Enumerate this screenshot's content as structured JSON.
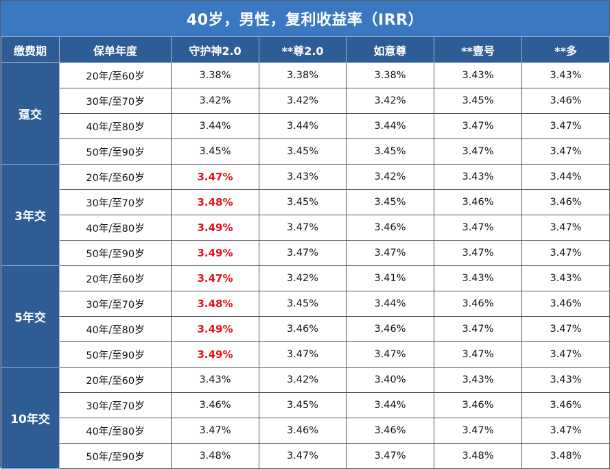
{
  "title": "40岁，男性，复利收益率（IRR）",
  "colors": {
    "title_bg": "#3a78c2",
    "header_bg": "#2e5c94",
    "highlight_text": "#e5101a"
  },
  "headers": [
    "缴费期",
    "保单年度",
    "守护神2.0",
    "**尊2.0",
    "如意尊",
    "**壹号",
    "**多"
  ],
  "groups": [
    {
      "label": "趸交",
      "rows": [
        {
          "period": "20年/至60岁",
          "values": [
            "3.38%",
            "3.38%",
            "3.38%",
            "3.43%",
            "3.43%"
          ],
          "highlight_first": false
        },
        {
          "period": "30年/至70岁",
          "values": [
            "3.42%",
            "3.42%",
            "3.42%",
            "3.45%",
            "3.46%"
          ],
          "highlight_first": false
        },
        {
          "period": "40年/至80岁",
          "values": [
            "3.44%",
            "3.44%",
            "3.44%",
            "3.47%",
            "3.47%"
          ],
          "highlight_first": false
        },
        {
          "period": "50年/至90岁",
          "values": [
            "3.45%",
            "3.45%",
            "3.45%",
            "3.47%",
            "3.47%"
          ],
          "highlight_first": false
        }
      ]
    },
    {
      "label": "3年交",
      "rows": [
        {
          "period": "20年/至60岁",
          "values": [
            "3.47%",
            "3.43%",
            "3.42%",
            "3.43%",
            "3.44%"
          ],
          "highlight_first": true
        },
        {
          "period": "30年/至70岁",
          "values": [
            "3.48%",
            "3.45%",
            "3.45%",
            "3.46%",
            "3.46%"
          ],
          "highlight_first": true
        },
        {
          "period": "40年/至80岁",
          "values": [
            "3.49%",
            "3.47%",
            "3.46%",
            "3.47%",
            "3.47%"
          ],
          "highlight_first": true
        },
        {
          "period": "50年/至90岁",
          "values": [
            "3.49%",
            "3.47%",
            "3.47%",
            "3.47%",
            "3.47%"
          ],
          "highlight_first": true
        }
      ]
    },
    {
      "label": "5年交",
      "rows": [
        {
          "period": "20年/至60岁",
          "values": [
            "3.47%",
            "3.42%",
            "3.41%",
            "3.43%",
            "3.43%"
          ],
          "highlight_first": true
        },
        {
          "period": "30年/至70岁",
          "values": [
            "3.48%",
            "3.45%",
            "3.44%",
            "3.46%",
            "3.46%"
          ],
          "highlight_first": true
        },
        {
          "period": "40年/至80岁",
          "values": [
            "3.49%",
            "3.46%",
            "3.46%",
            "3.47%",
            "3.47%"
          ],
          "highlight_first": true
        },
        {
          "period": "50年/至90岁",
          "values": [
            "3.49%",
            "3.47%",
            "3.47%",
            "3.47%",
            "3.47%"
          ],
          "highlight_first": true
        }
      ]
    },
    {
      "label": "10年交",
      "rows": [
        {
          "period": "20年/至60岁",
          "values": [
            "3.43%",
            "3.42%",
            "3.40%",
            "3.43%",
            "3.43%"
          ],
          "highlight_first": false
        },
        {
          "period": "30年/至70岁",
          "values": [
            "3.46%",
            "3.45%",
            "3.44%",
            "3.46%",
            "3.46%"
          ],
          "highlight_first": false
        },
        {
          "period": "40年/至80岁",
          "values": [
            "3.47%",
            "3.46%",
            "3.46%",
            "3.47%",
            "3.47%"
          ],
          "highlight_first": false
        },
        {
          "period": "50年/至90岁",
          "values": [
            "3.48%",
            "3.47%",
            "3.47%",
            "3.48%",
            "3.48%"
          ],
          "highlight_first": false
        }
      ]
    }
  ]
}
